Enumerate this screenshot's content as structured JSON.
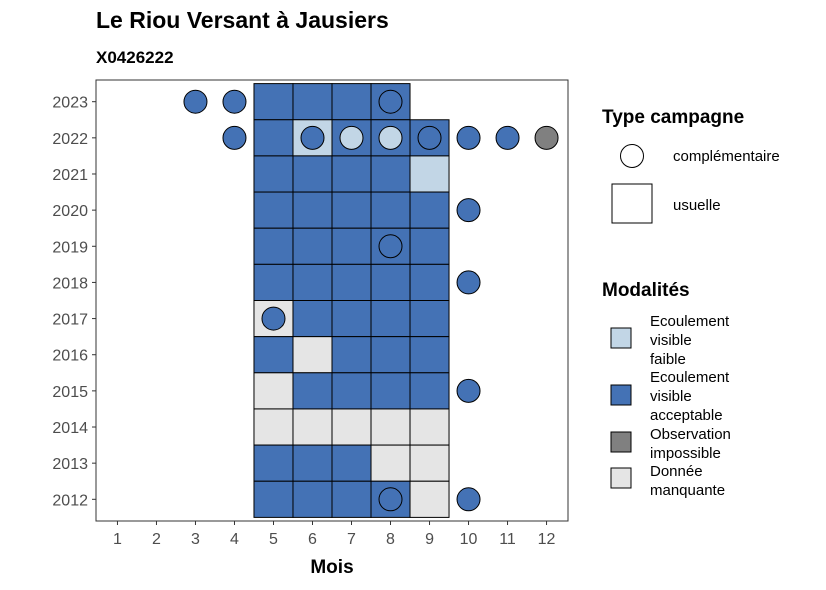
{
  "chart_data": {
    "type": "heatmap",
    "title": "Le Riou Versant à Jausiers",
    "subtitle": "X0426222",
    "xlabel": "Mois",
    "ylabel": "",
    "x_ticks": [
      "1",
      "2",
      "3",
      "4",
      "5",
      "6",
      "7",
      "8",
      "9",
      "10",
      "11",
      "12"
    ],
    "y_ticks": [
      "2012",
      "2013",
      "2014",
      "2015",
      "2016",
      "2017",
      "2018",
      "2019",
      "2020",
      "2021",
      "2022",
      "2023"
    ],
    "colors": {
      "faible": "#c2d6e6",
      "acceptable": "#4472b5",
      "impossible": "#808080",
      "manquante": "#e5e5e5"
    },
    "legend_type": {
      "title": "Type campagne",
      "items": [
        {
          "key": "complementaire",
          "label": "complémentaire",
          "shape": "circle"
        },
        {
          "key": "usuelle",
          "label": "usuelle",
          "shape": "square"
        }
      ]
    },
    "legend_modalites": {
      "title": "Modalités",
      "items": [
        {
          "key": "faible",
          "label_lines": [
            "Ecoulement",
            "visible",
            "faible"
          ]
        },
        {
          "key": "acceptable",
          "label_lines": [
            "Ecoulement",
            "visible",
            "acceptable"
          ]
        },
        {
          "key": "impossible",
          "label_lines": [
            "Observation",
            "impossible"
          ]
        },
        {
          "key": "manquante",
          "label_lines": [
            "Donnée",
            "manquante"
          ]
        }
      ]
    },
    "usuelle": [
      {
        "year": 2023,
        "month": 5,
        "value": "acceptable"
      },
      {
        "year": 2023,
        "month": 6,
        "value": "acceptable"
      },
      {
        "year": 2023,
        "month": 7,
        "value": "acceptable"
      },
      {
        "year": 2023,
        "month": 8,
        "value": "acceptable"
      },
      {
        "year": 2022,
        "month": 5,
        "value": "acceptable"
      },
      {
        "year": 2022,
        "month": 6,
        "value": "faible"
      },
      {
        "year": 2022,
        "month": 7,
        "value": "acceptable"
      },
      {
        "year": 2022,
        "month": 8,
        "value": "acceptable"
      },
      {
        "year": 2022,
        "month": 9,
        "value": "acceptable"
      },
      {
        "year": 2021,
        "month": 5,
        "value": "acceptable"
      },
      {
        "year": 2021,
        "month": 6,
        "value": "acceptable"
      },
      {
        "year": 2021,
        "month": 7,
        "value": "acceptable"
      },
      {
        "year": 2021,
        "month": 8,
        "value": "acceptable"
      },
      {
        "year": 2021,
        "month": 9,
        "value": "faible"
      },
      {
        "year": 2020,
        "month": 5,
        "value": "acceptable"
      },
      {
        "year": 2020,
        "month": 6,
        "value": "acceptable"
      },
      {
        "year": 2020,
        "month": 7,
        "value": "acceptable"
      },
      {
        "year": 2020,
        "month": 8,
        "value": "acceptable"
      },
      {
        "year": 2020,
        "month": 9,
        "value": "acceptable"
      },
      {
        "year": 2019,
        "month": 5,
        "value": "acceptable"
      },
      {
        "year": 2019,
        "month": 6,
        "value": "acceptable"
      },
      {
        "year": 2019,
        "month": 7,
        "value": "acceptable"
      },
      {
        "year": 2019,
        "month": 8,
        "value": "acceptable"
      },
      {
        "year": 2019,
        "month": 9,
        "value": "acceptable"
      },
      {
        "year": 2018,
        "month": 5,
        "value": "acceptable"
      },
      {
        "year": 2018,
        "month": 6,
        "value": "acceptable"
      },
      {
        "year": 2018,
        "month": 7,
        "value": "acceptable"
      },
      {
        "year": 2018,
        "month": 8,
        "value": "acceptable"
      },
      {
        "year": 2018,
        "month": 9,
        "value": "acceptable"
      },
      {
        "year": 2017,
        "month": 5,
        "value": "manquante"
      },
      {
        "year": 2017,
        "month": 6,
        "value": "acceptable"
      },
      {
        "year": 2017,
        "month": 7,
        "value": "acceptable"
      },
      {
        "year": 2017,
        "month": 8,
        "value": "acceptable"
      },
      {
        "year": 2017,
        "month": 9,
        "value": "acceptable"
      },
      {
        "year": 2016,
        "month": 5,
        "value": "acceptable"
      },
      {
        "year": 2016,
        "month": 6,
        "value": "manquante"
      },
      {
        "year": 2016,
        "month": 7,
        "value": "acceptable"
      },
      {
        "year": 2016,
        "month": 8,
        "value": "acceptable"
      },
      {
        "year": 2016,
        "month": 9,
        "value": "acceptable"
      },
      {
        "year": 2015,
        "month": 5,
        "value": "manquante"
      },
      {
        "year": 2015,
        "month": 6,
        "value": "acceptable"
      },
      {
        "year": 2015,
        "month": 7,
        "value": "acceptable"
      },
      {
        "year": 2015,
        "month": 8,
        "value": "acceptable"
      },
      {
        "year": 2015,
        "month": 9,
        "value": "acceptable"
      },
      {
        "year": 2014,
        "month": 5,
        "value": "manquante"
      },
      {
        "year": 2014,
        "month": 6,
        "value": "manquante"
      },
      {
        "year": 2014,
        "month": 7,
        "value": "manquante"
      },
      {
        "year": 2014,
        "month": 8,
        "value": "manquante"
      },
      {
        "year": 2014,
        "month": 9,
        "value": "manquante"
      },
      {
        "year": 2013,
        "month": 5,
        "value": "acceptable"
      },
      {
        "year": 2013,
        "month": 6,
        "value": "acceptable"
      },
      {
        "year": 2013,
        "month": 7,
        "value": "acceptable"
      },
      {
        "year": 2013,
        "month": 8,
        "value": "manquante"
      },
      {
        "year": 2013,
        "month": 9,
        "value": "manquante"
      },
      {
        "year": 2012,
        "month": 5,
        "value": "acceptable"
      },
      {
        "year": 2012,
        "month": 6,
        "value": "acceptable"
      },
      {
        "year": 2012,
        "month": 7,
        "value": "acceptable"
      },
      {
        "year": 2012,
        "month": 8,
        "value": "acceptable"
      },
      {
        "year": 2012,
        "month": 9,
        "value": "manquante"
      }
    ],
    "complementaire": [
      {
        "year": 2023,
        "month": 3,
        "value": "acceptable"
      },
      {
        "year": 2023,
        "month": 4,
        "value": "acceptable"
      },
      {
        "year": 2023,
        "month": 8,
        "value": "acceptable"
      },
      {
        "year": 2022,
        "month": 4,
        "value": "acceptable"
      },
      {
        "year": 2022,
        "month": 6,
        "value": "acceptable"
      },
      {
        "year": 2022,
        "month": 7,
        "value": "faible"
      },
      {
        "year": 2022,
        "month": 8,
        "value": "faible"
      },
      {
        "year": 2022,
        "month": 9,
        "value": "acceptable"
      },
      {
        "year": 2022,
        "month": 10,
        "value": "acceptable"
      },
      {
        "year": 2022,
        "month": 11,
        "value": "acceptable"
      },
      {
        "year": 2022,
        "month": 12,
        "value": "impossible"
      },
      {
        "year": 2020,
        "month": 10,
        "value": "acceptable"
      },
      {
        "year": 2019,
        "month": 8,
        "value": "acceptable"
      },
      {
        "year": 2018,
        "month": 10,
        "value": "acceptable"
      },
      {
        "year": 2017,
        "month": 5,
        "value": "acceptable"
      },
      {
        "year": 2015,
        "month": 10,
        "value": "acceptable"
      },
      {
        "year": 2012,
        "month": 8,
        "value": "acceptable"
      },
      {
        "year": 2012,
        "month": 10,
        "value": "acceptable"
      }
    ]
  }
}
